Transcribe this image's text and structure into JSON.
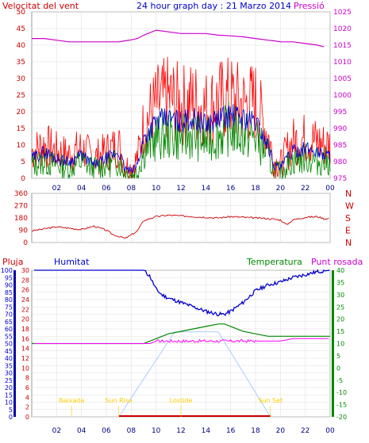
{
  "header": {
    "wind_label": "Velocitat del vent",
    "graph_title": "24 hour graph day : 21 Marzo 2014",
    "pressure_label": "Pressió"
  },
  "bottom_header": {
    "rain_label": "Pluja",
    "humidity_label": "Humitat",
    "temperature_label": "Temperatura",
    "dewpoint_label": "Punt rosada"
  },
  "hour_ticks": [
    "02",
    "04",
    "06",
    "08",
    "10",
    "12",
    "14",
    "16",
    "18",
    "20",
    "22",
    "00"
  ],
  "colors": {
    "frame": "#999999",
    "wind_gust": "#ff0000",
    "wind_avg": "#0000cc",
    "wind_green": "#008800",
    "pressure": "#cc00cc",
    "direction": "#cc0000",
    "rain": "#cc0000",
    "humidity": "#0000cc",
    "temperature": "#008800",
    "dewpoint": "#ff00ff",
    "sun": "#aaccff",
    "astro": "#ffcc00"
  },
  "chart_data": [
    {
      "type": "line",
      "title": "24 hour graph day : 21 Marzo 2014",
      "x_hours": [
        0,
        1,
        2,
        3,
        4,
        5,
        6,
        7,
        7.5,
        8,
        8.5,
        9,
        10,
        11,
        12,
        13,
        14,
        15,
        16,
        17,
        18,
        19,
        19.5,
        20,
        20.5,
        21,
        22,
        23,
        23.5
      ],
      "y_left_ticks": [
        0,
        5,
        10,
        15,
        20,
        25,
        30,
        35,
        40,
        45,
        50
      ],
      "y_right_ticks": [
        975,
        980,
        985,
        990,
        995,
        1000,
        1005,
        1010,
        1015,
        1020,
        1025
      ],
      "ylim_left": [
        0,
        50
      ],
      "ylim_right": [
        975,
        1025
      ],
      "series": [
        {
          "name": "Velocitat del vent",
          "values": [
            8,
            10,
            8,
            7,
            9,
            6,
            8,
            10,
            4,
            3,
            6,
            16,
            22,
            24,
            22,
            23,
            21,
            23,
            24,
            22,
            23,
            13,
            5,
            4,
            8,
            11,
            12,
            11,
            10
          ]
        },
        {
          "name": "",
          "values": [
            6,
            8,
            6,
            5,
            7,
            4,
            6,
            8,
            3,
            2,
            4,
            12,
            17,
            18,
            17,
            18,
            16,
            18,
            19,
            18,
            17,
            10,
            4,
            3,
            6,
            8,
            9,
            8,
            7
          ]
        },
        {
          "name": "",
          "values": [
            4,
            5,
            4,
            3,
            5,
            3,
            4,
            5,
            2,
            1,
            2,
            8,
            12,
            13,
            12,
            13,
            11,
            13,
            15,
            13,
            12,
            7,
            2,
            2,
            4,
            5,
            6,
            5,
            5
          ]
        },
        {
          "name": "Pressió",
          "values": [
            1017,
            1017,
            1016.5,
            1016,
            1016,
            1016,
            1016,
            1016,
            1016.3,
            1016.6,
            1017,
            1018,
            1019.5,
            1019,
            1018.5,
            1018.5,
            1018.5,
            1018,
            1017.8,
            1017.5,
            1017,
            1016.5,
            1016.3,
            1016,
            1016,
            1016,
            1015.5,
            1015,
            1014.5
          ]
        }
      ]
    },
    {
      "type": "line",
      "y_ticks": [
        0,
        90,
        180,
        270,
        360
      ],
      "y_right_labels": [
        "N",
        "W",
        "S",
        "E",
        "N"
      ],
      "ylim": [
        0,
        360
      ],
      "x_hours": [
        0,
        1,
        2,
        3,
        4,
        5,
        6,
        6.5,
        7,
        7.5,
        8,
        8.5,
        9,
        10,
        11,
        12,
        13,
        14,
        15,
        16,
        17,
        18,
        19,
        20,
        20.5,
        21,
        22,
        23,
        23.5
      ],
      "series": [
        {
          "name": "",
          "values": [
            85,
            100,
            115,
            105,
            95,
            120,
            90,
            60,
            45,
            30,
            55,
            85,
            160,
            190,
            200,
            195,
            190,
            185,
            180,
            190,
            185,
            180,
            175,
            165,
            130,
            165,
            185,
            190,
            175
          ]
        }
      ]
    },
    {
      "type": "line",
      "x_hours": [
        0,
        2,
        4,
        6,
        8,
        9,
        9.5,
        10,
        10.5,
        11,
        12,
        13,
        14,
        15,
        15.5,
        16,
        17,
        18,
        19,
        20,
        21,
        22,
        23,
        24
      ],
      "y_left_ticks": [
        0,
        5,
        10,
        15,
        20,
        25,
        30,
        35,
        40,
        45,
        50,
        55,
        60,
        65,
        70,
        75,
        80,
        85,
        90,
        95,
        100
      ],
      "y_rain_ticks": [
        0,
        2,
        4,
        6,
        8,
        10,
        12,
        14,
        16,
        18,
        20,
        22,
        24,
        26,
        28,
        30
      ],
      "y_right_ticks": [
        -20,
        -15,
        -10,
        -5,
        0,
        5,
        10,
        15,
        20,
        25,
        30,
        35,
        40
      ],
      "series": [
        {
          "name": "Humitat",
          "values": [
            100,
            100,
            100,
            100,
            100,
            100,
            96,
            87,
            83,
            81,
            78,
            75,
            72,
            70,
            70,
            72,
            78,
            86,
            90,
            92,
            95,
            97,
            99,
            100
          ]
        },
        {
          "name": "Temperatura",
          "values": [
            10,
            10,
            10,
            10,
            10,
            10,
            11,
            12,
            13,
            14,
            15,
            16,
            17,
            18,
            18,
            17,
            15,
            14,
            13,
            13,
            13,
            13,
            13,
            13
          ]
        },
        {
          "name": "Punt rosada",
          "values": [
            10,
            10,
            10,
            10,
            10,
            10,
            10,
            11,
            11,
            11,
            11,
            11,
            11,
            11,
            11,
            11,
            11,
            11,
            11,
            11,
            12,
            12,
            12,
            12
          ]
        },
        {
          "name": "Pluja",
          "values": [
            0,
            0,
            0,
            0,
            0,
            0,
            0,
            0,
            0,
            0,
            0,
            0,
            0,
            0,
            0,
            0,
            0,
            0,
            0,
            0,
            0,
            0,
            0,
            0
          ]
        }
      ],
      "sun_elevation": {
        "x_hours": [
          7.0,
          11.5,
          15.0,
          19.2
        ],
        "values": [
          0,
          58,
          58,
          0
        ],
        "ylim": [
          0,
          100
        ]
      },
      "astro_labels": [
        {
          "text": "Baixada",
          "hour": 3.2
        },
        {
          "text": "Sun Rise",
          "hour": 7.0
        },
        {
          "text": "Lostide",
          "hour": 12.0
        },
        {
          "text": "Sun Set",
          "hour": 19.2
        }
      ]
    }
  ]
}
